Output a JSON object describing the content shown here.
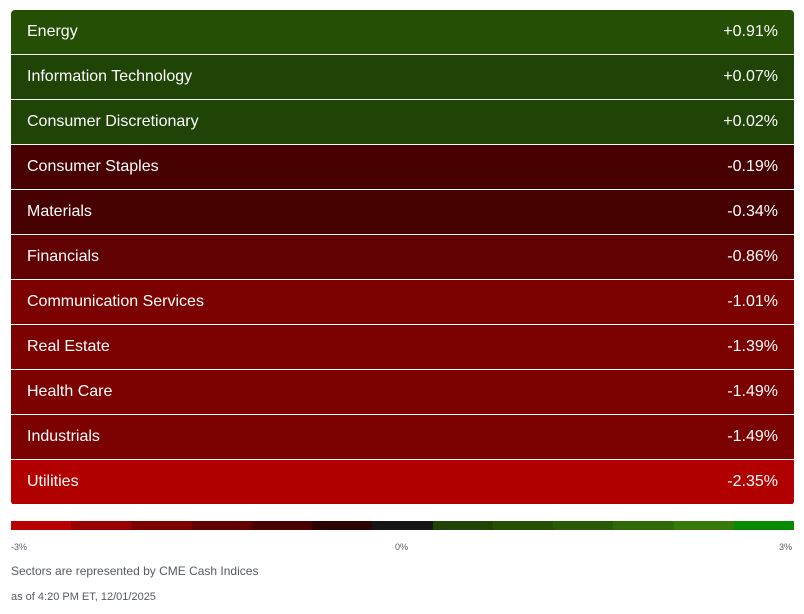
{
  "sectors": [
    {
      "name": "Energy",
      "value": "+0.91%",
      "color": "#244f05"
    },
    {
      "name": "Information Technology",
      "value": "+0.07%",
      "color": "#1f4406"
    },
    {
      "name": "Consumer Discretionary",
      "value": "+0.02%",
      "color": "#1f4406"
    },
    {
      "name": "Consumer Staples",
      "value": "-0.19%",
      "color": "#470101"
    },
    {
      "name": "Materials",
      "value": "-0.34%",
      "color": "#470101"
    },
    {
      "name": "Financials",
      "value": "-0.86%",
      "color": "#620101"
    },
    {
      "name": "Communication Services",
      "value": "-1.01%",
      "color": "#7c0101"
    },
    {
      "name": "Real Estate",
      "value": "-1.39%",
      "color": "#7c0101"
    },
    {
      "name": "Health Care",
      "value": "-1.49%",
      "color": "#7c0101"
    },
    {
      "name": "Industrials",
      "value": "-1.49%",
      "color": "#7c0101"
    },
    {
      "name": "Utilities",
      "value": "-2.35%",
      "color": "#b00100"
    }
  ],
  "scale": {
    "colors": [
      "#b80100",
      "#9a0102",
      "#7c0101",
      "#620101",
      "#470101",
      "#2b0302",
      "#161616",
      "#1f4406",
      "#244f05",
      "#285a07",
      "#2f6908",
      "#357a0b",
      "#088b04"
    ],
    "min_label": "-3%",
    "mid_label": "0%",
    "max_label": "3%"
  },
  "footer": {
    "source": "Sectors are represented by CME Cash Indices",
    "timestamp": "as of 4:20 PM ET, 12/01/2025"
  }
}
